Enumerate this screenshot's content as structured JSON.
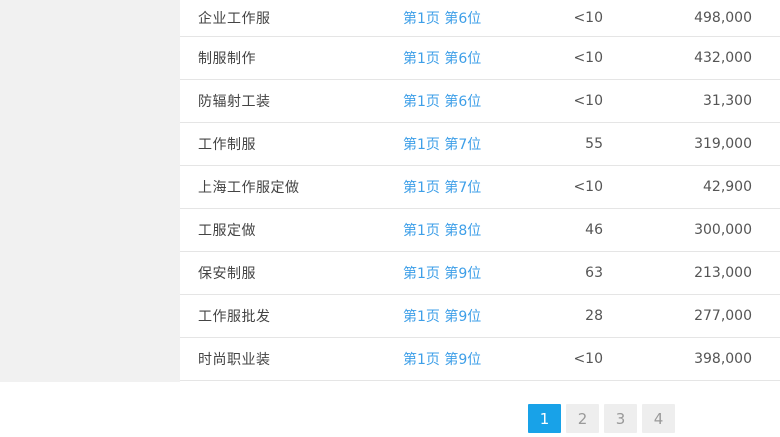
{
  "table": {
    "rows": [
      {
        "keyword": "企业工作服",
        "rank": "第1页 第6位",
        "metric": "<10",
        "volume": "498,000"
      },
      {
        "keyword": "制服制作",
        "rank": "第1页 第6位",
        "metric": "<10",
        "volume": "432,000"
      },
      {
        "keyword": "防辐射工装",
        "rank": "第1页 第6位",
        "metric": "<10",
        "volume": "31,300"
      },
      {
        "keyword": "工作制服",
        "rank": "第1页 第7位",
        "metric": "55",
        "volume": "319,000"
      },
      {
        "keyword": "上海工作服定做",
        "rank": "第1页 第7位",
        "metric": "<10",
        "volume": "42,900"
      },
      {
        "keyword": "工服定做",
        "rank": "第1页 第8位",
        "metric": "46",
        "volume": "300,000"
      },
      {
        "keyword": "保安制服",
        "rank": "第1页 第9位",
        "metric": "63",
        "volume": "213,000"
      },
      {
        "keyword": "工作服批发",
        "rank": "第1页 第9位",
        "metric": "28",
        "volume": "277,000"
      },
      {
        "keyword": "时尚职业装",
        "rank": "第1页 第9位",
        "metric": "<10",
        "volume": "398,000"
      }
    ]
  },
  "pagination": {
    "pages": [
      "1",
      "2",
      "3",
      "4"
    ],
    "active": "1"
  },
  "colors": {
    "link_blue": "#3E9FE8",
    "pagination_active_blue": "#18A2E8",
    "sidebar_gray": "#F1F1F1",
    "row_border_gray": "#E5E5E5"
  }
}
